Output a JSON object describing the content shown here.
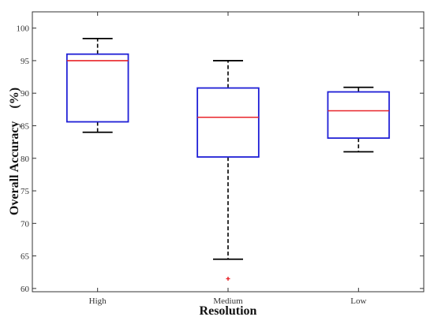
{
  "chart_data": {
    "type": "boxplot",
    "xlabel": "Resolution",
    "ylabel": "Overall Accuracy    (%)",
    "ylim": [
      59.5,
      102.5
    ],
    "yticks": [
      60,
      65,
      70,
      75,
      80,
      85,
      90,
      95,
      100
    ],
    "categories": [
      "High",
      "Medium",
      "Low"
    ],
    "boxes": [
      {
        "category": "High",
        "whisker_low": 84.0,
        "q1": 85.6,
        "median": 95.0,
        "q3": 96.0,
        "whisker_high": 98.4,
        "outliers": []
      },
      {
        "category": "Medium",
        "whisker_low": 64.5,
        "q1": 80.2,
        "median": 86.3,
        "q3": 90.8,
        "whisker_high": 95.0,
        "outliers": [
          61.5
        ]
      },
      {
        "category": "Low",
        "whisker_low": 81.0,
        "q1": 83.1,
        "median": 87.3,
        "q3": 90.2,
        "whisker_high": 90.9,
        "outliers": []
      }
    ],
    "grid": false,
    "colors": {
      "box": "#1f1fd6",
      "median": "#e8242a",
      "whisker": "#000000",
      "outlier": "#e8242a",
      "axes": "#333333"
    }
  }
}
